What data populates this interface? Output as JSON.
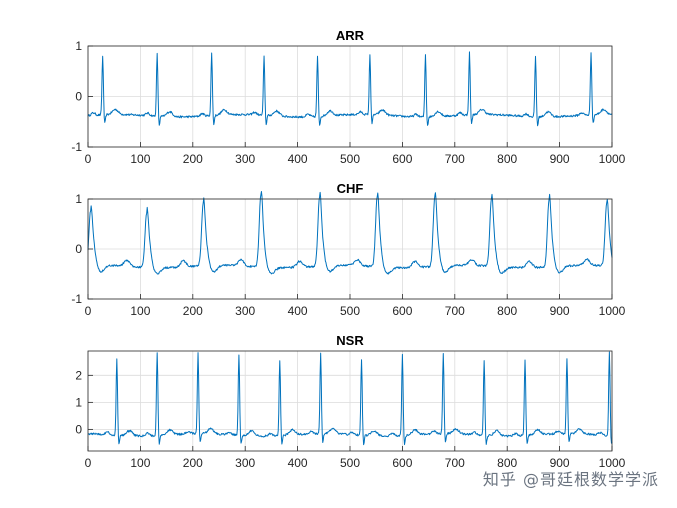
{
  "colors": {
    "trace": "#0072BD",
    "grid": "#dcdcdc",
    "axis": "#262626"
  },
  "watermark": "知乎 @哥廷根数学学派",
  "chart_data": [
    {
      "type": "line",
      "title": "ARR",
      "xlim": [
        0,
        1000
      ],
      "ylim": [
        -1,
        1
      ],
      "xticks": [
        0,
        100,
        200,
        300,
        400,
        500,
        600,
        700,
        800,
        900,
        1000
      ],
      "yticks": [
        -1,
        0,
        1
      ],
      "grid": true,
      "baseline": -0.38,
      "beats": [
        {
          "x": 28,
          "peak": 0.78
        },
        {
          "x": 132,
          "peak": 0.85
        },
        {
          "x": 236,
          "peak": 0.85
        },
        {
          "x": 336,
          "peak": 0.78
        },
        {
          "x": 438,
          "peak": 0.8
        },
        {
          "x": 538,
          "peak": 0.8
        },
        {
          "x": 644,
          "peak": 0.85
        },
        {
          "x": 728,
          "peak": 0.85
        },
        {
          "x": 854,
          "peak": 0.82
        },
        {
          "x": 960,
          "peak": 0.85
        }
      ]
    },
    {
      "type": "line",
      "title": "CHF",
      "xlim": [
        0,
        1000
      ],
      "ylim": [
        -1,
        1
      ],
      "xticks": [
        0,
        100,
        200,
        300,
        400,
        500,
        600,
        700,
        800,
        900,
        1000
      ],
      "yticks": [
        -1,
        0,
        1
      ],
      "grid": true,
      "baseline": -0.35,
      "beats": [
        {
          "x": 5,
          "peak": 0.75
        },
        {
          "x": 112,
          "peak": 0.75
        },
        {
          "x": 220,
          "peak": 0.9
        },
        {
          "x": 330,
          "peak": 1.1
        },
        {
          "x": 442,
          "peak": 1.05
        },
        {
          "x": 552,
          "peak": 1.05
        },
        {
          "x": 662,
          "peak": 1.05
        },
        {
          "x": 770,
          "peak": 1.0
        },
        {
          "x": 880,
          "peak": 1.0
        },
        {
          "x": 990,
          "peak": 0.9
        }
      ]
    },
    {
      "type": "line",
      "title": "NSR",
      "xlim": [
        0,
        1000
      ],
      "ylim": [
        -0.8,
        2.9
      ],
      "xticks": [
        0,
        100,
        200,
        300,
        400,
        500,
        600,
        700,
        800,
        900,
        1000
      ],
      "yticks": [
        0,
        1,
        2
      ],
      "grid": true,
      "baseline": -0.2,
      "beats": [
        {
          "x": 55,
          "peak": 2.6
        },
        {
          "x": 132,
          "peak": 2.9
        },
        {
          "x": 210,
          "peak": 2.8
        },
        {
          "x": 288,
          "peak": 2.8
        },
        {
          "x": 366,
          "peak": 2.6
        },
        {
          "x": 444,
          "peak": 2.8
        },
        {
          "x": 522,
          "peak": 2.6
        },
        {
          "x": 600,
          "peak": 2.8
        },
        {
          "x": 678,
          "peak": 2.8
        },
        {
          "x": 756,
          "peak": 2.6
        },
        {
          "x": 834,
          "peak": 2.6
        },
        {
          "x": 914,
          "peak": 2.6
        },
        {
          "x": 995,
          "peak": 2.9
        }
      ]
    }
  ]
}
